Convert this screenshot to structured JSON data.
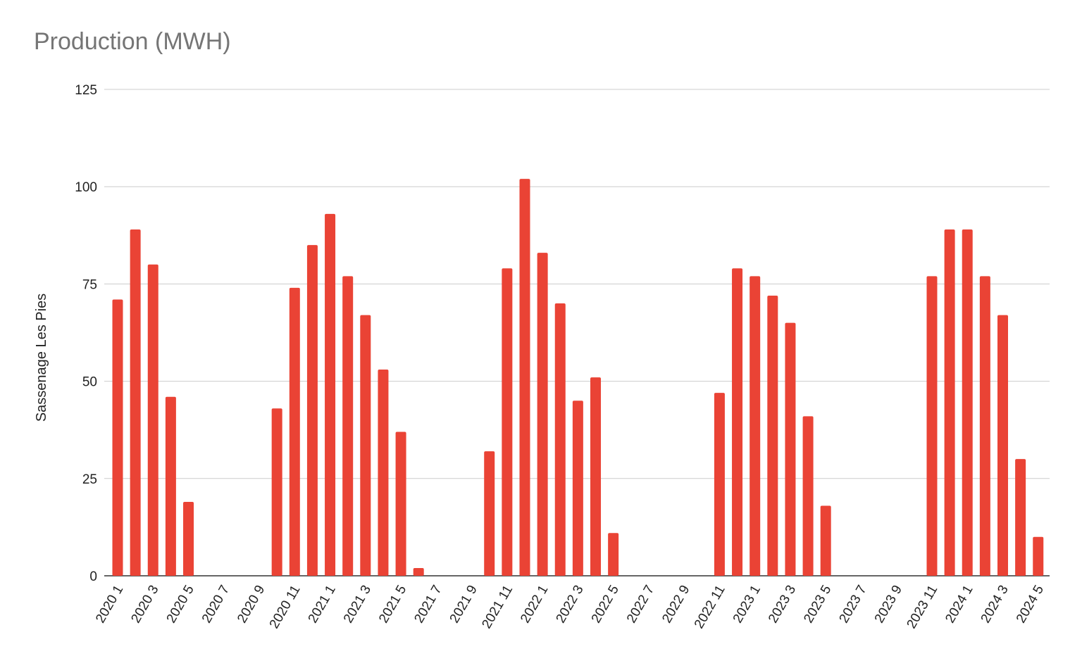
{
  "chart_data": {
    "type": "bar",
    "title": "Production (MWH)",
    "xlabel": "",
    "ylabel": "Sassenage Les Pies",
    "ylim": [
      0,
      125
    ],
    "yticks": [
      0,
      25,
      50,
      75,
      100,
      125
    ],
    "grid": true,
    "bar_color": "#ea4335",
    "categories": [
      "2020 1",
      "2020 2",
      "2020 3",
      "2020 4",
      "2020 5",
      "2020 6",
      "2020 7",
      "2020 8",
      "2020 9",
      "2020 10",
      "2020 11",
      "2020 12",
      "2021 1",
      "2021 2",
      "2021 3",
      "2021 4",
      "2021 5",
      "2021 6",
      "2021 7",
      "2021 8",
      "2021 9",
      "2021 10",
      "2021 11",
      "2021 12",
      "2022 1",
      "2022 2",
      "2022 3",
      "2022 4",
      "2022 5",
      "2022 6",
      "2022 7",
      "2022 8",
      "2022 9",
      "2022 10",
      "2022 11",
      "2022 12",
      "2023 1",
      "2023 2",
      "2023 3",
      "2023 4",
      "2023 5",
      "2023 6",
      "2023 7",
      "2023 8",
      "2023 9",
      "2023 10",
      "2023 11",
      "2023 12",
      "2024 1",
      "2024 2",
      "2024 3",
      "2024 4",
      "2024 5"
    ],
    "values": [
      71,
      89,
      80,
      46,
      19,
      0,
      0,
      0,
      0,
      43,
      74,
      85,
      93,
      77,
      67,
      53,
      37,
      2,
      0,
      0,
      0,
      32,
      79,
      102,
      83,
      70,
      45,
      51,
      11,
      0,
      0,
      0,
      0,
      0,
      47,
      79,
      77,
      72,
      65,
      41,
      18,
      0,
      0,
      0,
      0,
      0,
      77,
      89,
      89,
      77,
      67,
      30,
      10
    ],
    "shown_tick_labels": [
      "2020 1",
      "2020 3",
      "2020 5",
      "2020 7",
      "2020 9",
      "2020 11",
      "2021 1",
      "2021 3",
      "2021 5",
      "2021 7",
      "2021 9",
      "2021 11",
      "2022 1",
      "2022 3",
      "2022 5",
      "2022 7",
      "2022 9",
      "2022 11",
      "2023 1",
      "2023 3",
      "2023 5",
      "2023 7",
      "2023 9",
      "2023 11",
      "2024 1",
      "2024 3",
      "2024 5"
    ]
  }
}
